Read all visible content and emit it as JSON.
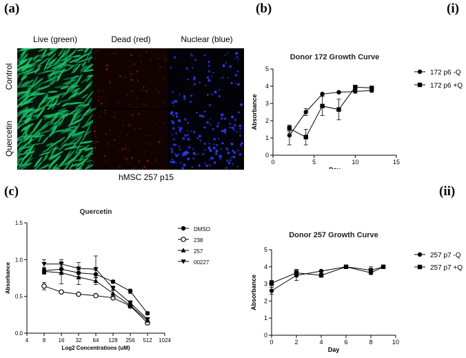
{
  "panel_labels": {
    "a": "(a)",
    "b": "(b)",
    "c": "(c)",
    "i": "(i)",
    "ii": "(ii)"
  },
  "micrograph": {
    "columns": [
      "Live (green)",
      "Dead (red)",
      "Nuclear (blue)"
    ],
    "rows": [
      "Control",
      "Quercetin"
    ],
    "caption": "hMSC 257 p15",
    "colors": {
      "live": "#19c46a",
      "dead": "#b01818",
      "nuclear": "#2a3cff",
      "background": "#000000"
    }
  },
  "chart_data": [
    {
      "id": "donor172",
      "type": "line",
      "title": "Donor 172 Growth Curve",
      "xlabel": "Day",
      "ylabel": "Absorbance",
      "xlim": [
        0,
        15
      ],
      "ylim": [
        0,
        5
      ],
      "xticks": [
        0,
        5,
        10,
        15
      ],
      "yticks": [
        0,
        1,
        2,
        3,
        4,
        5
      ],
      "series": [
        {
          "name": "172 p6 -Q",
          "marker": "circle",
          "x": [
            2,
            4,
            6,
            8,
            10,
            12
          ],
          "y": [
            1.15,
            2.5,
            3.55,
            3.65,
            3.7,
            3.75
          ],
          "err": [
            0.55,
            0.2,
            0.05,
            0.05,
            0.1,
            0.1
          ]
        },
        {
          "name": "172 p6 +Q",
          "marker": "square",
          "x": [
            2,
            4,
            6,
            8,
            10,
            12
          ],
          "y": [
            1.55,
            1.05,
            2.85,
            2.65,
            3.95,
            3.9
          ],
          "err": [
            0.2,
            0.45,
            0.55,
            0.6,
            0.1,
            0.1
          ]
        }
      ]
    },
    {
      "id": "quercetin",
      "type": "line",
      "title": "Quercetin",
      "xlabel": "Log2 Concentrations (uM)",
      "ylabel": "Absorbance",
      "xscale": "log2",
      "xlim": [
        4,
        1024
      ],
      "ylim": [
        0,
        1.5
      ],
      "xticks": [
        4,
        8,
        16,
        32,
        64,
        128,
        256,
        512,
        1024
      ],
      "yticks": [
        0.0,
        0.5,
        1.0,
        1.5
      ],
      "series": [
        {
          "name": "DMSO",
          "marker": "circle",
          "x": [
            8,
            16,
            32,
            64,
            128,
            256,
            512
          ],
          "y": [
            0.85,
            0.87,
            0.82,
            0.8,
            0.7,
            0.57,
            0.27
          ],
          "err": [
            0.04,
            0.04,
            0.05,
            0.05,
            0.02,
            0.03,
            0.02
          ]
        },
        {
          "name": "238",
          "marker": "open-circle",
          "x": [
            8,
            16,
            32,
            64,
            128,
            256,
            512
          ],
          "y": [
            0.64,
            0.56,
            0.53,
            0.51,
            0.48,
            0.37,
            0.14
          ],
          "err": [
            0.05,
            0.01,
            0.01,
            0.01,
            0.01,
            0.03,
            0.01
          ]
        },
        {
          "name": "257",
          "marker": "triangle",
          "x": [
            8,
            16,
            32,
            64,
            128,
            256,
            512
          ],
          "y": [
            0.84,
            0.82,
            0.76,
            0.71,
            0.54,
            0.38,
            0.17
          ],
          "err": [
            0.04,
            0.15,
            0.1,
            0.05,
            0.05,
            0.03,
            0.02
          ]
        },
        {
          "name": "00227",
          "marker": "triangle-down",
          "x": [
            8,
            16,
            32,
            64,
            128,
            256,
            512
          ],
          "y": [
            0.94,
            0.94,
            0.88,
            0.87,
            0.61,
            0.41,
            0.19
          ],
          "err": [
            0.06,
            0.06,
            0.08,
            0.18,
            0.03,
            0.03,
            0.02
          ]
        }
      ]
    },
    {
      "id": "donor257",
      "type": "line",
      "title": "Donor 257 Growth Curve",
      "xlabel": "Day",
      "ylabel": "Absorbance",
      "xlim": [
        0,
        10
      ],
      "ylim": [
        0,
        5
      ],
      "xticks": [
        0,
        2,
        4,
        6,
        8,
        10
      ],
      "yticks": [
        0,
        1,
        2,
        3,
        4,
        5
      ],
      "series": [
        {
          "name": "257 p7 -Q",
          "marker": "circle",
          "x": [
            0,
            2,
            4,
            6,
            8,
            9
          ],
          "y": [
            2.6,
            3.5,
            3.75,
            4.0,
            3.65,
            4.0
          ],
          "err": [
            0.2,
            0.3,
            0.05,
            0.05,
            0.1,
            0.05
          ]
        },
        {
          "name": "257 p7 +Q",
          "marker": "square",
          "x": [
            0,
            2,
            4,
            6,
            8,
            9
          ],
          "y": [
            3.05,
            3.65,
            3.5,
            4.0,
            3.8,
            4.0
          ],
          "err": [
            0.15,
            0.2,
            0.05,
            0.05,
            0.2,
            0.05
          ]
        }
      ]
    }
  ]
}
